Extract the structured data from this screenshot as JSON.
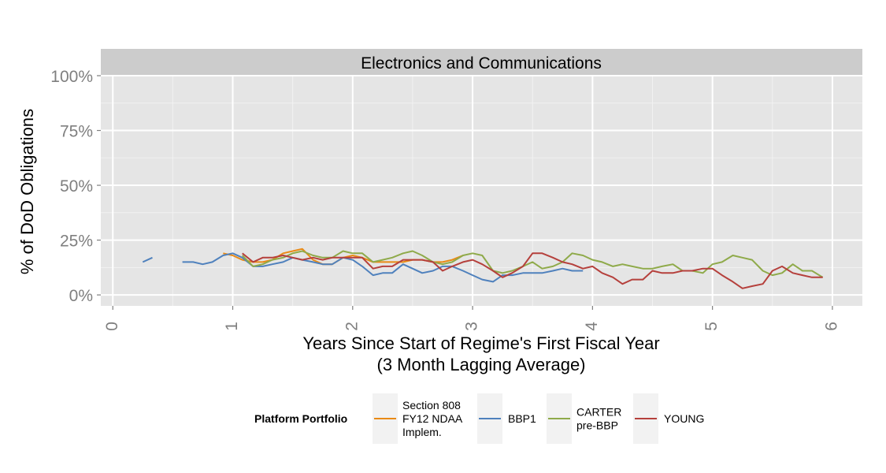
{
  "chart_data": {
    "type": "line",
    "facet_title": "Electronics and Communications",
    "xlabel": "Years Since Start of Regime's First Fiscal Year",
    "xlabel_sub": "(3 Month Lagging Average)",
    "ylabel": "% of DoD Obligations",
    "xlim": [
      -0.1,
      6.25
    ],
    "ylim": [
      -0.05,
      1.0
    ],
    "x_ticks": [
      "0",
      "1",
      "2",
      "3",
      "4",
      "5",
      "6"
    ],
    "y_ticks": [
      "0%",
      "25%",
      "50%",
      "75%",
      "100%"
    ],
    "grid": true,
    "legend": {
      "title": "Platform Portfolio",
      "position": "bottom"
    },
    "series": [
      {
        "name": "Section 808 FY12 NDAA Implem.",
        "label_lines": [
          "Section 808",
          "FY12 NDAA",
          "Implem."
        ],
        "color": "#E98A15",
        "segments": [
          [
            [
              0.92,
              0.19
            ],
            [
              1.0,
              0.18
            ],
            [
              1.08,
              0.16
            ],
            [
              1.17,
              0.15
            ],
            [
              1.25,
              0.15
            ],
            [
              1.33,
              0.16
            ],
            [
              1.42,
              0.19
            ],
            [
              1.5,
              0.2
            ],
            [
              1.58,
              0.21
            ],
            [
              1.67,
              0.16
            ],
            [
              1.75,
              0.14
            ],
            [
              1.83,
              0.14
            ],
            [
              1.92,
              0.17
            ],
            [
              2.0,
              0.18
            ],
            [
              2.08,
              0.17
            ],
            [
              2.17,
              0.15
            ],
            [
              2.25,
              0.15
            ],
            [
              2.33,
              0.15
            ],
            [
              2.42,
              0.15
            ],
            [
              2.5,
              0.16
            ],
            [
              2.58,
              0.16
            ],
            [
              2.67,
              0.15
            ],
            [
              2.75,
              0.15
            ],
            [
              2.83,
              0.16
            ],
            [
              2.92,
              0.18
            ]
          ]
        ]
      },
      {
        "name": "BBP1",
        "label_lines": [
          "BBP1"
        ],
        "color": "#4F81BD",
        "segments": [
          [
            [
              0.25,
              0.15
            ],
            [
              0.33,
              0.17
            ]
          ],
          [
            [
              0.58,
              0.15
            ],
            [
              0.67,
              0.15
            ],
            [
              0.75,
              0.14
            ],
            [
              0.83,
              0.15
            ],
            [
              0.92,
              0.18
            ],
            [
              1.0,
              0.19
            ],
            [
              1.08,
              0.17
            ],
            [
              1.17,
              0.13
            ],
            [
              1.25,
              0.13
            ],
            [
              1.33,
              0.14
            ],
            [
              1.42,
              0.15
            ],
            [
              1.5,
              0.17
            ],
            [
              1.58,
              0.16
            ],
            [
              1.67,
              0.15
            ],
            [
              1.75,
              0.14
            ],
            [
              1.83,
              0.14
            ],
            [
              1.92,
              0.17
            ],
            [
              2.0,
              0.16
            ],
            [
              2.08,
              0.13
            ],
            [
              2.17,
              0.09
            ],
            [
              2.25,
              0.1
            ],
            [
              2.33,
              0.1
            ],
            [
              2.42,
              0.14
            ],
            [
              2.5,
              0.12
            ],
            [
              2.58,
              0.1
            ],
            [
              2.67,
              0.11
            ],
            [
              2.75,
              0.13
            ],
            [
              2.83,
              0.13
            ],
            [
              2.92,
              0.11
            ],
            [
              3.0,
              0.09
            ],
            [
              3.08,
              0.07
            ],
            [
              3.17,
              0.06
            ],
            [
              3.25,
              0.09
            ],
            [
              3.33,
              0.09
            ],
            [
              3.42,
              0.1
            ],
            [
              3.5,
              0.1
            ],
            [
              3.58,
              0.1
            ],
            [
              3.67,
              0.11
            ],
            [
              3.75,
              0.12
            ],
            [
              3.83,
              0.11
            ],
            [
              3.92,
              0.11
            ]
          ]
        ]
      },
      {
        "name": "CARTER pre-BBP",
        "label_lines": [
          "CARTER",
          "pre-BBP"
        ],
        "color": "#8FAA4A",
        "segments": [
          [
            [
              1.08,
              0.18
            ],
            [
              1.17,
              0.13
            ],
            [
              1.25,
              0.14
            ],
            [
              1.33,
              0.16
            ],
            [
              1.42,
              0.17
            ],
            [
              1.5,
              0.19
            ],
            [
              1.58,
              0.2
            ],
            [
              1.67,
              0.18
            ],
            [
              1.75,
              0.17
            ],
            [
              1.83,
              0.17
            ],
            [
              1.92,
              0.2
            ],
            [
              2.0,
              0.19
            ],
            [
              2.08,
              0.19
            ],
            [
              2.17,
              0.15
            ],
            [
              2.25,
              0.16
            ],
            [
              2.33,
              0.17
            ],
            [
              2.42,
              0.19
            ],
            [
              2.5,
              0.2
            ],
            [
              2.58,
              0.18
            ],
            [
              2.67,
              0.15
            ],
            [
              2.75,
              0.14
            ],
            [
              2.83,
              0.15
            ],
            [
              2.92,
              0.18
            ],
            [
              3.0,
              0.19
            ],
            [
              3.08,
              0.18
            ],
            [
              3.17,
              0.11
            ],
            [
              3.25,
              0.1
            ],
            [
              3.33,
              0.11
            ],
            [
              3.42,
              0.13
            ],
            [
              3.5,
              0.15
            ],
            [
              3.58,
              0.12
            ],
            [
              3.67,
              0.13
            ],
            [
              3.75,
              0.15
            ],
            [
              3.83,
              0.19
            ],
            [
              3.92,
              0.18
            ],
            [
              4.0,
              0.16
            ],
            [
              4.08,
              0.15
            ],
            [
              4.17,
              0.13
            ],
            [
              4.25,
              0.14
            ],
            [
              4.33,
              0.13
            ],
            [
              4.42,
              0.12
            ],
            [
              4.5,
              0.12
            ],
            [
              4.58,
              0.13
            ],
            [
              4.67,
              0.14
            ],
            [
              4.75,
              0.11
            ],
            [
              4.83,
              0.11
            ],
            [
              4.92,
              0.1
            ],
            [
              5.0,
              0.14
            ],
            [
              5.08,
              0.15
            ],
            [
              5.17,
              0.18
            ],
            [
              5.25,
              0.17
            ],
            [
              5.33,
              0.16
            ],
            [
              5.42,
              0.11
            ],
            [
              5.5,
              0.09
            ],
            [
              5.58,
              0.1
            ],
            [
              5.67,
              0.14
            ],
            [
              5.75,
              0.11
            ],
            [
              5.83,
              0.11
            ],
            [
              5.92,
              0.08
            ]
          ]
        ]
      },
      {
        "name": "YOUNG",
        "label_lines": [
          "YOUNG"
        ],
        "color": "#B5403C",
        "segments": [
          [
            [
              1.08,
              0.19
            ],
            [
              1.17,
              0.15
            ],
            [
              1.25,
              0.17
            ],
            [
              1.33,
              0.17
            ],
            [
              1.42,
              0.18
            ],
            [
              1.5,
              0.17
            ],
            [
              1.58,
              0.16
            ],
            [
              1.67,
              0.17
            ],
            [
              1.75,
              0.16
            ],
            [
              1.83,
              0.17
            ],
            [
              1.92,
              0.17
            ],
            [
              2.0,
              0.17
            ],
            [
              2.08,
              0.17
            ],
            [
              2.17,
              0.12
            ],
            [
              2.25,
              0.13
            ],
            [
              2.33,
              0.13
            ],
            [
              2.42,
              0.16
            ],
            [
              2.5,
              0.16
            ],
            [
              2.58,
              0.16
            ],
            [
              2.67,
              0.15
            ],
            [
              2.75,
              0.11
            ],
            [
              2.83,
              0.13
            ],
            [
              2.92,
              0.15
            ],
            [
              3.0,
              0.16
            ],
            [
              3.08,
              0.14
            ],
            [
              3.17,
              0.11
            ],
            [
              3.25,
              0.08
            ],
            [
              3.33,
              0.1
            ],
            [
              3.42,
              0.13
            ],
            [
              3.5,
              0.19
            ],
            [
              3.58,
              0.19
            ],
            [
              3.67,
              0.17
            ],
            [
              3.75,
              0.15
            ],
            [
              3.83,
              0.14
            ],
            [
              3.92,
              0.12
            ],
            [
              4.0,
              0.13
            ],
            [
              4.08,
              0.1
            ],
            [
              4.17,
              0.08
            ],
            [
              4.25,
              0.05
            ],
            [
              4.33,
              0.07
            ],
            [
              4.42,
              0.07
            ],
            [
              4.5,
              0.11
            ],
            [
              4.58,
              0.1
            ],
            [
              4.67,
              0.1
            ],
            [
              4.75,
              0.11
            ],
            [
              4.83,
              0.11
            ],
            [
              4.92,
              0.12
            ],
            [
              5.0,
              0.12
            ],
            [
              5.08,
              0.09
            ],
            [
              5.17,
              0.06
            ],
            [
              5.25,
              0.03
            ],
            [
              5.33,
              0.04
            ],
            [
              5.42,
              0.05
            ],
            [
              5.5,
              0.11
            ],
            [
              5.58,
              0.13
            ],
            [
              5.67,
              0.1
            ],
            [
              5.75,
              0.09
            ],
            [
              5.83,
              0.08
            ],
            [
              5.92,
              0.08
            ]
          ]
        ]
      }
    ]
  }
}
